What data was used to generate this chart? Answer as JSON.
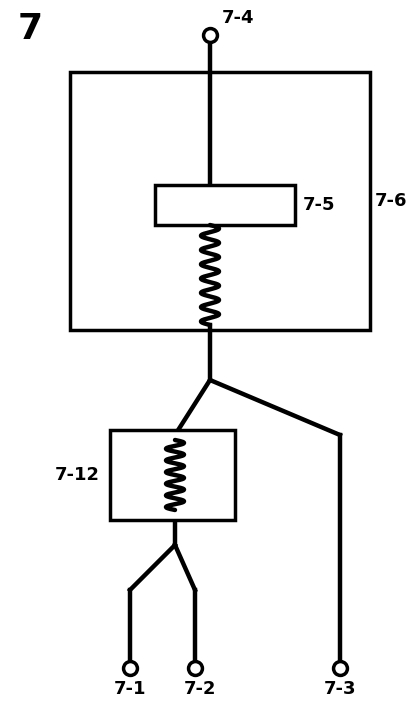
{
  "title_label": "7",
  "label_74": "7-4",
  "label_75": "7-5",
  "label_76": "7-6",
  "label_712": "7-12",
  "label_71": "7-1",
  "label_72": "7-2",
  "label_73": "7-3",
  "bg_color": "#ffffff",
  "line_color": "#000000",
  "line_width": 3.2
}
